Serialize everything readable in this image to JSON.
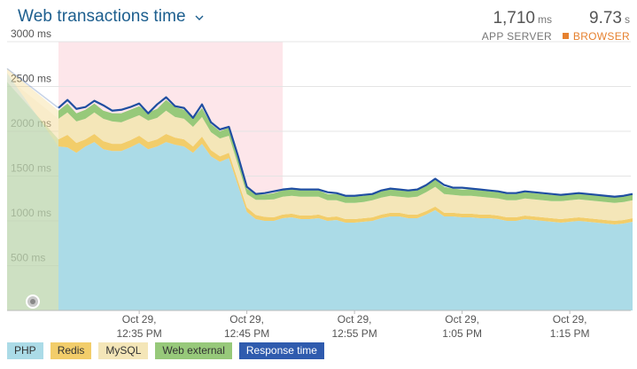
{
  "header": {
    "title": "Web transactions time",
    "app_server": {
      "value": "1,710",
      "unit": "ms",
      "label": "APP SERVER"
    },
    "browser": {
      "value": "9.73",
      "unit": "s",
      "label": "BROWSER"
    }
  },
  "colors": {
    "php": "#abdbe7",
    "redis": "#f2cd6a",
    "mysql": "#f4e6b8",
    "web_external": "#97c97a",
    "response_time": "#1f4ea1",
    "highlight": "#fde6ea",
    "browser_accent": "#e6812f",
    "title": "#1c5e8e"
  },
  "legend": [
    {
      "label": "PHP",
      "bg": "#abdbe7",
      "fg": "#333333"
    },
    {
      "label": "Redis",
      "bg": "#f2cd6a",
      "fg": "#333333"
    },
    {
      "label": "MySQL",
      "bg": "#f4e6b8",
      "fg": "#333333"
    },
    {
      "label": "Web external",
      "bg": "#97c97a",
      "fg": "#333333"
    },
    {
      "label": "Response time",
      "bg": "#2f5bae",
      "fg": "#ffffff"
    }
  ],
  "chart_data": {
    "type": "area",
    "title": "Web transactions time",
    "ylim": [
      0,
      3000
    ],
    "xlim": [
      0,
      64
    ],
    "y_ticks": [
      {
        "value": 500,
        "label": "500 ms"
      },
      {
        "value": 1000,
        "label": "1000 ms"
      },
      {
        "value": 1500,
        "label": "1500 ms"
      },
      {
        "value": 2000,
        "label": "2000 ms"
      },
      {
        "value": 2500,
        "label": "2500 ms"
      },
      {
        "value": 3000,
        "label": "3000 ms"
      }
    ],
    "x_ticks": [
      {
        "value": 9,
        "line1": "Oct 29,",
        "line2": "12:35 PM"
      },
      {
        "value": 21,
        "line1": "Oct 29,",
        "line2": "12:45 PM"
      },
      {
        "value": 33,
        "line1": "Oct 29,",
        "line2": "12:55 PM"
      },
      {
        "value": 45,
        "line1": "Oct 29,",
        "line2": "1:05 PM"
      },
      {
        "value": 57,
        "line1": "Oct 29,",
        "line2": "1:15 PM"
      }
    ],
    "highlight_range": [
      0,
      25
    ],
    "leading_range": [
      -5,
      0
    ],
    "grid": true,
    "legend_position": "bottom",
    "x": [
      -5,
      0,
      1,
      2,
      3,
      4,
      5,
      6,
      7,
      8,
      9,
      10,
      11,
      12,
      13,
      14,
      15,
      16,
      17,
      18,
      19,
      20,
      21,
      22,
      23,
      24,
      25,
      26,
      27,
      28,
      29,
      30,
      31,
      32,
      33,
      34,
      35,
      36,
      37,
      38,
      39,
      40,
      41,
      42,
      43,
      44,
      45,
      46,
      47,
      48,
      49,
      50,
      51,
      52,
      53,
      54,
      55,
      56,
      57,
      58,
      59,
      60,
      61,
      62,
      63,
      64
    ],
    "series": [
      {
        "name": "PHP",
        "values": [
          2650,
          1830,
          1820,
          1760,
          1830,
          1880,
          1800,
          1780,
          1780,
          1820,
          1870,
          1800,
          1830,
          1880,
          1850,
          1830,
          1760,
          1860,
          1720,
          1660,
          1700,
          1400,
          1100,
          1020,
          1000,
          1000,
          1030,
          1040,
          1020,
          1020,
          1030,
          1000,
          1010,
          980,
          980,
          990,
          1000,
          1030,
          1050,
          1050,
          1030,
          1030,
          1070,
          1120,
          1050,
          1050,
          1040,
          1040,
          1030,
          1030,
          1020,
          1000,
          1000,
          1020,
          1010,
          1000,
          990,
          980,
          990,
          1000,
          990,
          980,
          970,
          960,
          970,
          990
        ]
      },
      {
        "name": "Redis",
        "values": [
          2700,
          80,
          140,
          110,
          80,
          90,
          90,
          80,
          80,
          80,
          80,
          80,
          80,
          90,
          80,
          80,
          70,
          80,
          70,
          60,
          60,
          50,
          50,
          45,
          45,
          40,
          40,
          40,
          40,
          40,
          40,
          40,
          40,
          40,
          40,
          40,
          40,
          40,
          40,
          40,
          40,
          40,
          40,
          40,
          40,
          40,
          40,
          40,
          40,
          40,
          40,
          40,
          40,
          40,
          40,
          40,
          40,
          40,
          40,
          40,
          40,
          40,
          40,
          40,
          40,
          40
        ]
      },
      {
        "name": "MySQL",
        "values": [
          2600,
          230,
          250,
          240,
          230,
          240,
          250,
          250,
          240,
          240,
          230,
          240,
          240,
          260,
          230,
          230,
          220,
          220,
          200,
          200,
          190,
          180,
          150,
          170,
          190,
          200,
          200,
          200,
          210,
          210,
          200,
          190,
          180,
          180,
          180,
          180,
          190,
          190,
          190,
          180,
          190,
          200,
          210,
          220,
          210,
          200,
          200,
          200,
          200,
          190,
          190,
          190,
          190,
          190,
          190,
          190,
          190,
          200,
          200,
          200,
          200,
          200,
          200,
          200,
          200,
          200
        ]
      },
      {
        "name": "Web external",
        "values": [
          2550,
          90,
          100,
          90,
          100,
          100,
          90,
          90,
          100,
          100,
          100,
          90,
          100,
          120,
          110,
          100,
          90,
          100,
          90,
          80,
          90,
          80,
          60,
          60,
          60,
          70,
          70,
          70,
          70,
          70,
          70,
          70,
          70,
          70,
          70,
          70,
          70,
          70,
          70,
          70,
          70,
          70,
          70,
          80,
          80,
          70,
          70,
          70,
          70,
          70,
          70,
          70,
          70,
          70,
          70,
          70,
          70,
          70,
          70,
          70,
          70,
          70,
          70,
          70,
          70,
          70
        ]
      },
      {
        "name": "Response time",
        "values": [
          2700,
          2260,
          2350,
          2250,
          2270,
          2340,
          2290,
          2230,
          2240,
          2270,
          2310,
          2200,
          2300,
          2380,
          2280,
          2260,
          2150,
          2300,
          2100,
          2020,
          2050,
          1730,
          1380,
          1300,
          1310,
          1330,
          1350,
          1360,
          1350,
          1350,
          1350,
          1320,
          1310,
          1280,
          1280,
          1290,
          1300,
          1340,
          1360,
          1350,
          1340,
          1350,
          1400,
          1470,
          1400,
          1370,
          1370,
          1360,
          1350,
          1340,
          1330,
          1310,
          1310,
          1330,
          1320,
          1310,
          1300,
          1290,
          1300,
          1310,
          1300,
          1290,
          1280,
          1270,
          1280,
          1300
        ]
      }
    ]
  }
}
